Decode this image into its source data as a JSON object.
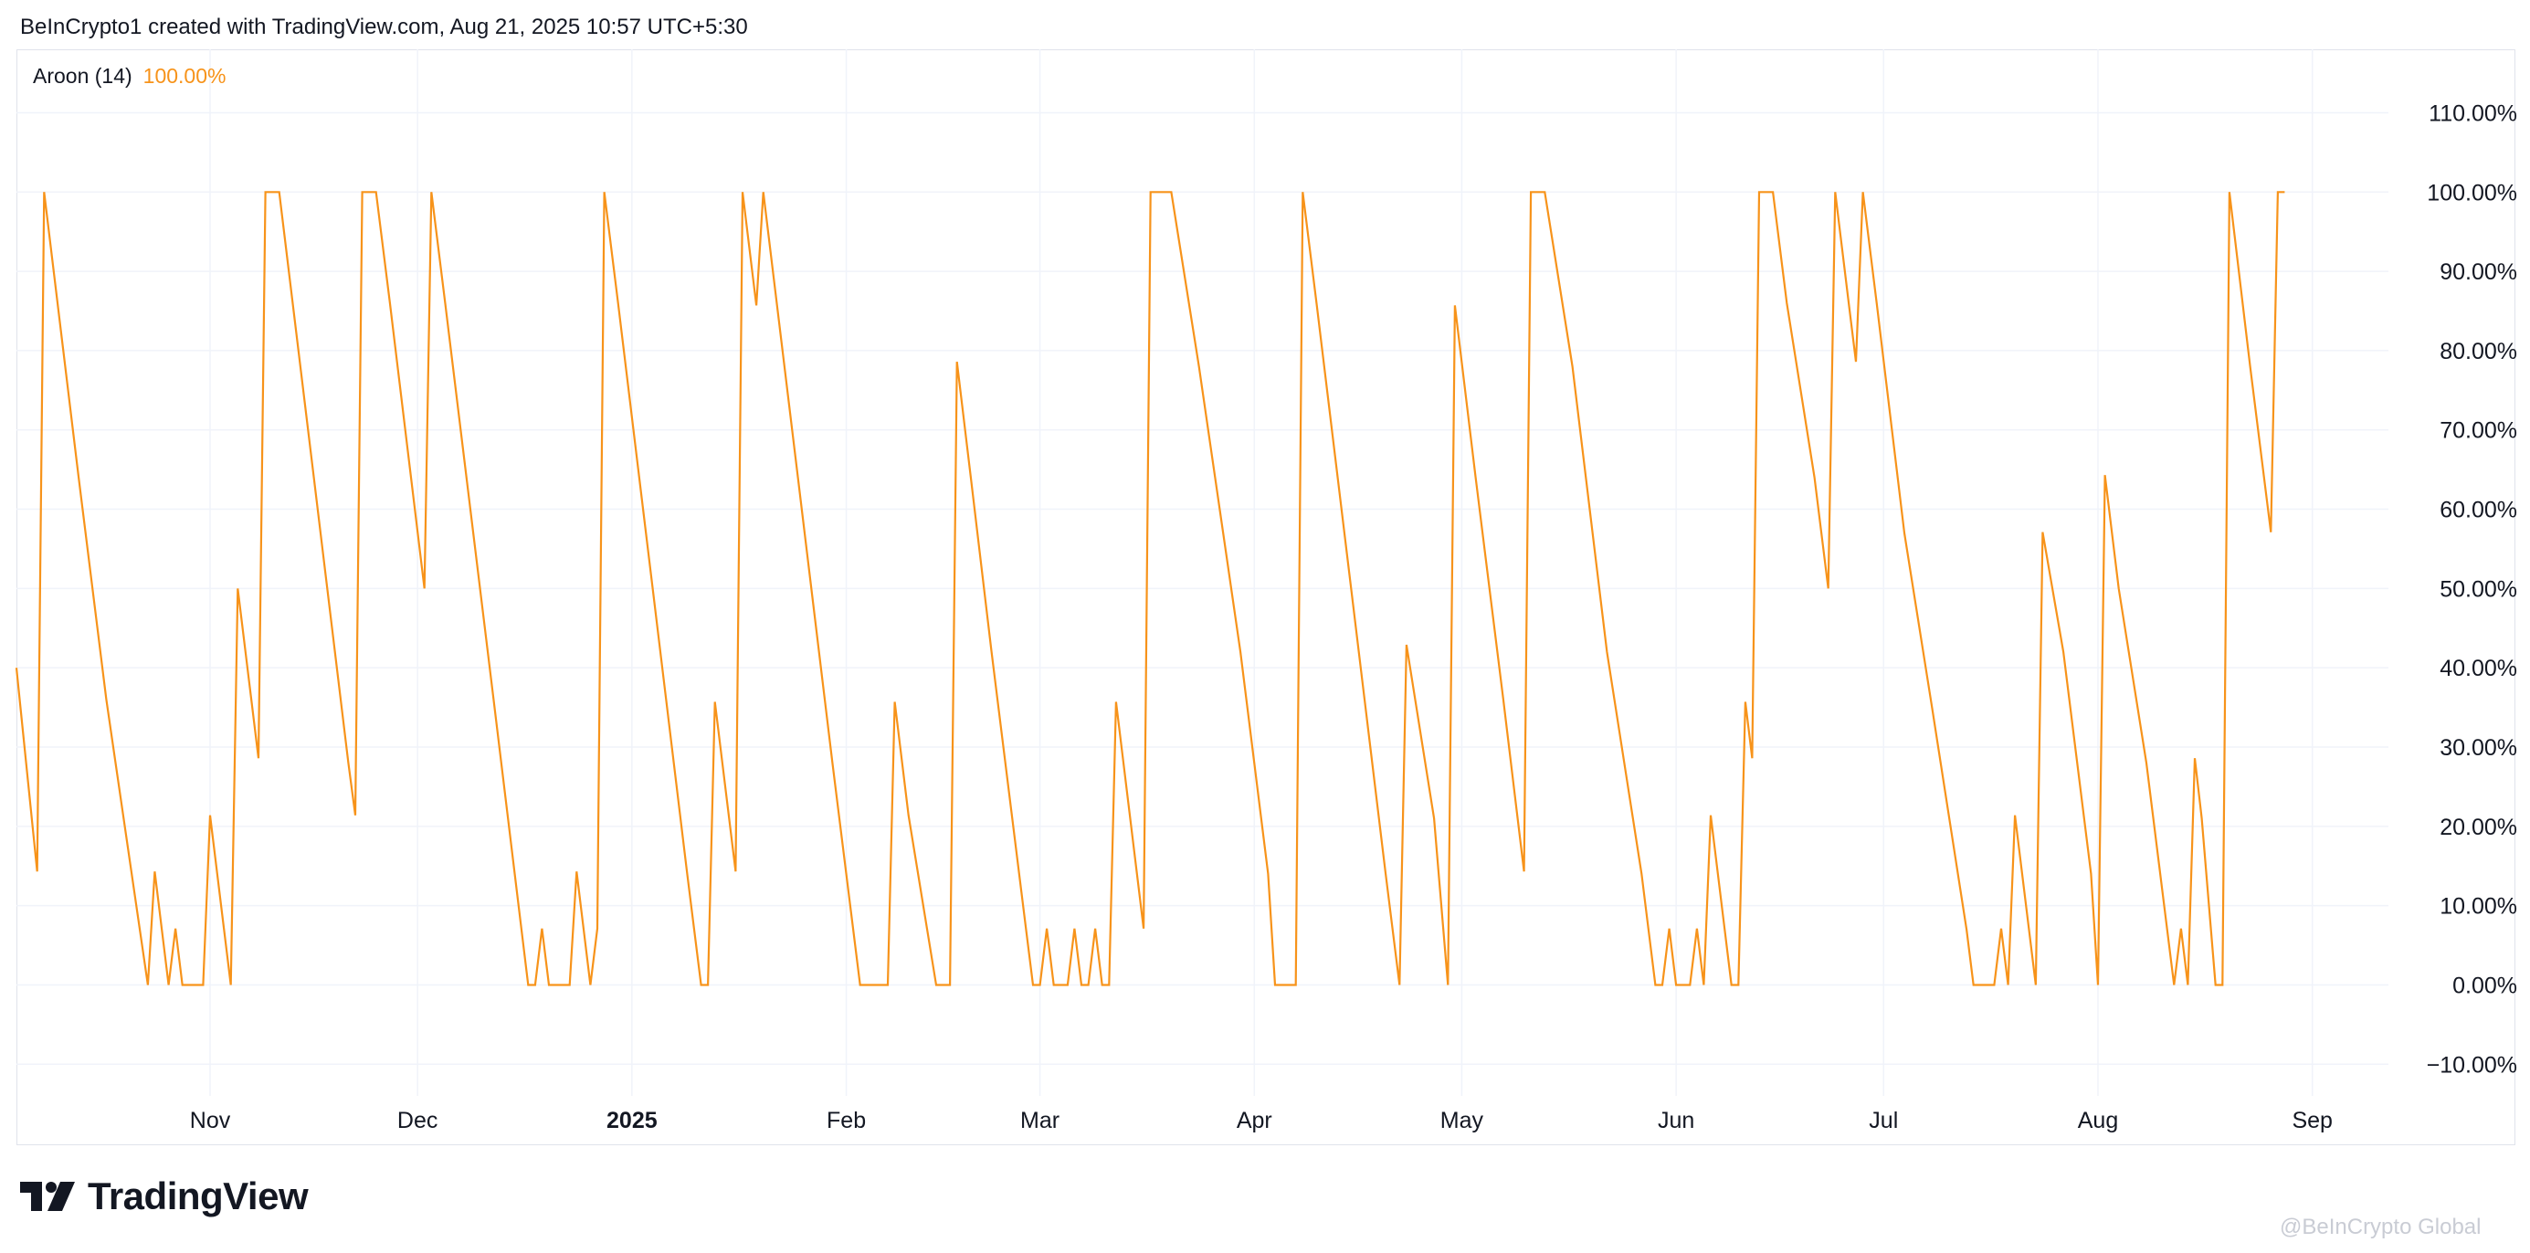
{
  "header": {
    "text": "BeInCrypto1 created with TradingView.com, Aug 21, 2025 10:57 UTC+5:30"
  },
  "legend": {
    "indicator": "Aroon (14)",
    "value": "100.00%"
  },
  "brand": {
    "name": "TradingView",
    "icon": "tradingview-logo-icon"
  },
  "watermark": {
    "text": "@BeInCrypto Global"
  },
  "colors": {
    "line": "#f7931a",
    "grid": "#f0f3fa",
    "text": "#131722",
    "border": "#e0e3eb"
  },
  "chart_data": {
    "type": "line",
    "title": "",
    "xlabel": "",
    "ylabel": "",
    "ylim": [
      -15,
      115
    ],
    "xlim": [
      "2024-10-04",
      "2025-09-12"
    ],
    "grid": true,
    "legend_position": "top-left",
    "y_ticks": [
      {
        "value": 110,
        "label": "110.00%"
      },
      {
        "value": 100,
        "label": "100.00%"
      },
      {
        "value": 90,
        "label": "90.00%"
      },
      {
        "value": 80,
        "label": "80.00%"
      },
      {
        "value": 70,
        "label": "70.00%"
      },
      {
        "value": 60,
        "label": "60.00%"
      },
      {
        "value": 50,
        "label": "50.00%"
      },
      {
        "value": 40,
        "label": "40.00%"
      },
      {
        "value": 30,
        "label": "30.00%"
      },
      {
        "value": 20,
        "label": "20.00%"
      },
      {
        "value": 10,
        "label": "10.00%"
      },
      {
        "value": 0,
        "label": "0.00%"
      },
      {
        "value": -10,
        "label": "−10.00%"
      }
    ],
    "x_ticks": [
      {
        "date": "2024-11-01",
        "label": "Nov",
        "bold": false
      },
      {
        "date": "2024-12-01",
        "label": "Dec",
        "bold": false
      },
      {
        "date": "2025-01-01",
        "label": "2025",
        "bold": true
      },
      {
        "date": "2025-02-01",
        "label": "Feb",
        "bold": false
      },
      {
        "date": "2025-03-01",
        "label": "Mar",
        "bold": false
      },
      {
        "date": "2025-04-01",
        "label": "Apr",
        "bold": false
      },
      {
        "date": "2025-05-01",
        "label": "May",
        "bold": false
      },
      {
        "date": "2025-06-01",
        "label": "Jun",
        "bold": false
      },
      {
        "date": "2025-07-01",
        "label": "Jul",
        "bold": false
      },
      {
        "date": "2025-08-01",
        "label": "Aug",
        "bold": false
      },
      {
        "date": "2025-09-01",
        "label": "Sep",
        "bold": false
      }
    ],
    "series": [
      {
        "name": "Aroon (14)",
        "color": "#f7931a",
        "points": [
          [
            "2024-10-04",
            40
          ],
          [
            "2024-10-07",
            14.3
          ],
          [
            "2024-10-08",
            100
          ],
          [
            "2024-10-13",
            64
          ],
          [
            "2024-10-17",
            36
          ],
          [
            "2024-10-23",
            0
          ],
          [
            "2024-10-24",
            14.3
          ],
          [
            "2024-10-26",
            0
          ],
          [
            "2024-10-27",
            7.1
          ],
          [
            "2024-10-28",
            0
          ],
          [
            "2024-10-31",
            0
          ],
          [
            "2024-11-01",
            21.4
          ],
          [
            "2024-11-04",
            0
          ],
          [
            "2024-11-05",
            50
          ],
          [
            "2024-11-08",
            28.6
          ],
          [
            "2024-11-09",
            100
          ],
          [
            "2024-11-11",
            100
          ],
          [
            "2024-11-16",
            64
          ],
          [
            "2024-11-21",
            28
          ],
          [
            "2024-11-22",
            21.4
          ],
          [
            "2024-11-23",
            100
          ],
          [
            "2024-11-25",
            100
          ],
          [
            "2024-11-27",
            86
          ],
          [
            "2024-12-02",
            50
          ],
          [
            "2024-12-03",
            100
          ],
          [
            "2024-12-05",
            86
          ],
          [
            "2024-12-12",
            36
          ],
          [
            "2024-12-17",
            0
          ],
          [
            "2024-12-18",
            0
          ],
          [
            "2024-12-19",
            7.1
          ],
          [
            "2024-12-20",
            0
          ],
          [
            "2024-12-23",
            0
          ],
          [
            "2024-12-24",
            14.3
          ],
          [
            "2024-12-26",
            0
          ],
          [
            "2024-12-27",
            7.1
          ],
          [
            "2024-12-28",
            100
          ],
          [
            "2024-12-30",
            86
          ],
          [
            "2025-01-04",
            50
          ],
          [
            "2025-01-09",
            14
          ],
          [
            "2025-01-11",
            0
          ],
          [
            "2025-01-12",
            0
          ],
          [
            "2025-01-13",
            35.7
          ],
          [
            "2025-01-16",
            14.3
          ],
          [
            "2025-01-17",
            100
          ],
          [
            "2025-01-19",
            85.7
          ],
          [
            "2025-01-20",
            100
          ],
          [
            "2025-01-25",
            64
          ],
          [
            "2025-01-30",
            28
          ],
          [
            "2025-02-03",
            0
          ],
          [
            "2025-02-07",
            0
          ],
          [
            "2025-02-08",
            35.7
          ],
          [
            "2025-02-10",
            21.4
          ],
          [
            "2025-02-14",
            0
          ],
          [
            "2025-02-16",
            0
          ],
          [
            "2025-02-17",
            78.6
          ],
          [
            "2025-02-19",
            64
          ],
          [
            "2025-02-22",
            42
          ],
          [
            "2025-02-27",
            7
          ],
          [
            "2025-02-28",
            0
          ],
          [
            "2025-03-01",
            0
          ],
          [
            "2025-03-02",
            7.1
          ],
          [
            "2025-03-03",
            0
          ],
          [
            "2025-03-05",
            0
          ],
          [
            "2025-03-06",
            7.1
          ],
          [
            "2025-03-07",
            0
          ],
          [
            "2025-03-08",
            0
          ],
          [
            "2025-03-09",
            7.1
          ],
          [
            "2025-03-10",
            0
          ],
          [
            "2025-03-11",
            0
          ],
          [
            "2025-03-12",
            35.7
          ],
          [
            "2025-03-16",
            7.1
          ],
          [
            "2025-03-17",
            100
          ],
          [
            "2025-03-20",
            100
          ],
          [
            "2025-03-24",
            78
          ],
          [
            "2025-03-30",
            42
          ],
          [
            "2025-04-03",
            14
          ],
          [
            "2025-04-04",
            0
          ],
          [
            "2025-04-07",
            0
          ],
          [
            "2025-04-08",
            100
          ],
          [
            "2025-04-10",
            86
          ],
          [
            "2025-04-15",
            50
          ],
          [
            "2025-04-20",
            14
          ],
          [
            "2025-04-22",
            0
          ],
          [
            "2025-04-23",
            42.9
          ],
          [
            "2025-04-27",
            21
          ],
          [
            "2025-04-29",
            0
          ],
          [
            "2025-04-30",
            85.7
          ],
          [
            "2025-05-03",
            64
          ],
          [
            "2025-05-07",
            36
          ],
          [
            "2025-05-10",
            14.3
          ],
          [
            "2025-05-11",
            100
          ],
          [
            "2025-05-13",
            100
          ],
          [
            "2025-05-17",
            78
          ],
          [
            "2025-05-22",
            42
          ],
          [
            "2025-05-27",
            14
          ],
          [
            "2025-05-29",
            0
          ],
          [
            "2025-05-30",
            0
          ],
          [
            "2025-05-31",
            7.1
          ],
          [
            "2025-06-01",
            0
          ],
          [
            "2025-06-03",
            0
          ],
          [
            "2025-06-04",
            7.1
          ],
          [
            "2025-06-05",
            0
          ],
          [
            "2025-06-06",
            21.4
          ],
          [
            "2025-06-09",
            0
          ],
          [
            "2025-06-10",
            0
          ],
          [
            "2025-06-11",
            35.7
          ],
          [
            "2025-06-12",
            28.6
          ],
          [
            "2025-06-13",
            100
          ],
          [
            "2025-06-15",
            100
          ],
          [
            "2025-06-17",
            86
          ],
          [
            "2025-06-21",
            64
          ],
          [
            "2025-06-23",
            50
          ],
          [
            "2025-06-24",
            100
          ],
          [
            "2025-06-26",
            85.7
          ],
          [
            "2025-06-27",
            78.6
          ],
          [
            "2025-06-28",
            100
          ],
          [
            "2025-06-30",
            86
          ],
          [
            "2025-07-04",
            57
          ],
          [
            "2025-07-08",
            35
          ],
          [
            "2025-07-13",
            7
          ],
          [
            "2025-07-14",
            0
          ],
          [
            "2025-07-17",
            0
          ],
          [
            "2025-07-18",
            7.1
          ],
          [
            "2025-07-19",
            0
          ],
          [
            "2025-07-20",
            21.4
          ],
          [
            "2025-07-23",
            0
          ],
          [
            "2025-07-24",
            57.1
          ],
          [
            "2025-07-27",
            42
          ],
          [
            "2025-07-31",
            14
          ],
          [
            "2025-08-01",
            0
          ],
          [
            "2025-08-02",
            64.3
          ],
          [
            "2025-08-04",
            50
          ],
          [
            "2025-08-08",
            28
          ],
          [
            "2025-08-12",
            0
          ],
          [
            "2025-08-13",
            7.1
          ],
          [
            "2025-08-14",
            0
          ],
          [
            "2025-08-15",
            28.6
          ],
          [
            "2025-08-16",
            21
          ],
          [
            "2025-08-18",
            0
          ],
          [
            "2025-08-19",
            0
          ],
          [
            "2025-08-20",
            100
          ],
          [
            "2025-08-23",
            78
          ],
          [
            "2025-08-26",
            57.1
          ],
          [
            "2025-08-27",
            100
          ],
          [
            "2025-08-28",
            100
          ]
        ]
      }
    ]
  }
}
